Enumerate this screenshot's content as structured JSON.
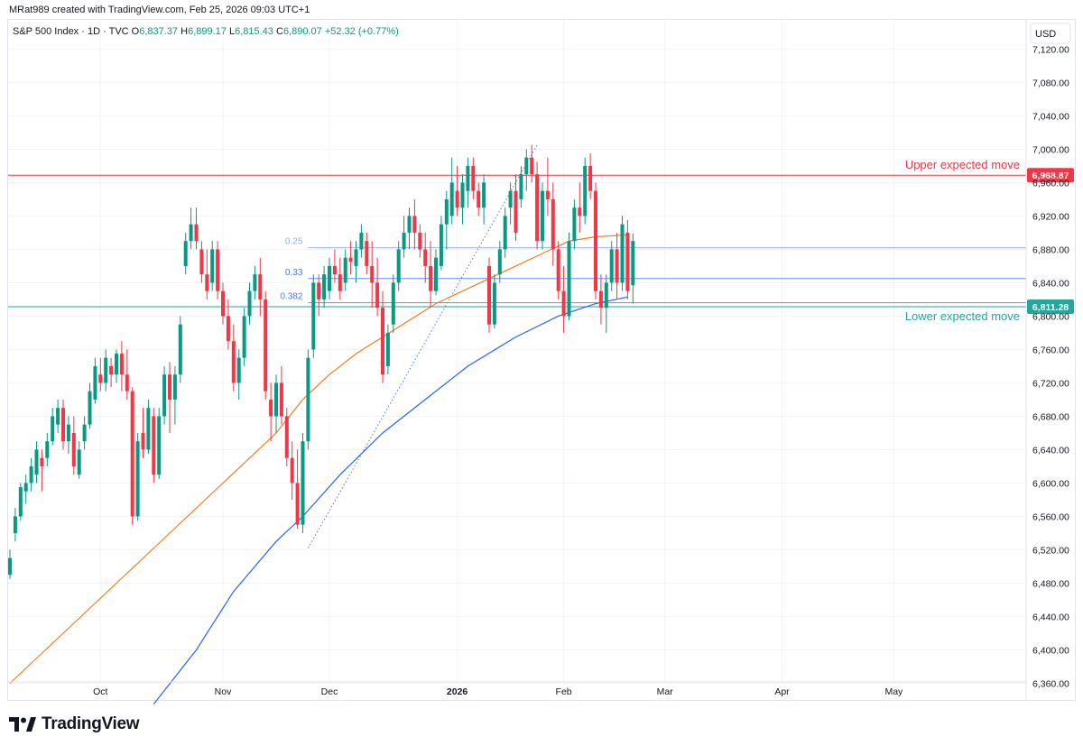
{
  "header": {
    "credit": "MRat989 created with TradingView.com, Feb 25, 2026 09:03 UTC+1"
  },
  "legend": {
    "symbol": "S&P 500 Index · 1D · TVC",
    "o_label": "O",
    "o_value": "6,837.37",
    "h_label": "H",
    "h_value": "6,899.17",
    "l_label": "L",
    "l_value": "6,815.43",
    "c_label": "C",
    "c_value": "6,890.07",
    "change": "+52.32 (+0.77%)"
  },
  "currency": "USD",
  "logo": {
    "text": "TradingView"
  },
  "colors": {
    "up": "#089981",
    "down": "#f23645",
    "ma_fast": "#f57c1f",
    "ma_slow": "#2962ff",
    "fib": "#4b7be5",
    "upper_line": "#f23645",
    "lower_line": "#26a69a"
  },
  "chart_data": {
    "type": "candlestick",
    "y_axis": {
      "range": [
        6340,
        7155
      ],
      "ticks": [
        6360,
        6400,
        6440,
        6480,
        6520,
        6560,
        6600,
        6640,
        6680,
        6720,
        6760,
        6800,
        6840,
        6880,
        6920,
        6960,
        7000,
        7040,
        7080,
        7120
      ],
      "tick_labels": [
        "6,360.00",
        "6,400.00",
        "6,440.00",
        "6,480.00",
        "6,520.00",
        "6,560.00",
        "6,600.00",
        "6,640.00",
        "6,680.00",
        "6,720.00",
        "6,760.00",
        "6,800.00",
        "6,840.00",
        "6,880.00",
        "6,920.00",
        "6,960.00",
        "7,000.00",
        "7,040.00",
        "7,080.00",
        "7,120.00"
      ]
    },
    "x_axis": {
      "labels": [
        {
          "text": "Oct",
          "bar": 17
        },
        {
          "text": "Nov",
          "bar": 40
        },
        {
          "text": "Dec",
          "bar": 60
        },
        {
          "text": "2026",
          "bar": 84
        },
        {
          "text": "Feb",
          "bar": 104
        },
        {
          "text": "Mar",
          "bar": 123
        },
        {
          "text": "Apr",
          "bar": 145
        },
        {
          "text": "May",
          "bar": 166
        }
      ],
      "total_bars": 190
    },
    "candles": [
      [
        6490,
        6520,
        6485,
        6510
      ],
      [
        6540,
        6570,
        6530,
        6560
      ],
      [
        6560,
        6600,
        6555,
        6595
      ],
      [
        6590,
        6610,
        6575,
        6600
      ],
      [
        6600,
        6630,
        6590,
        6620
      ],
      [
        6610,
        6650,
        6600,
        6640
      ],
      [
        6630,
        6640,
        6590,
        6620
      ],
      [
        6630,
        6660,
        6620,
        6650
      ],
      [
        6650,
        6690,
        6645,
        6680
      ],
      [
        6670,
        6700,
        6660,
        6690
      ],
      [
        6690,
        6700,
        6640,
        6650
      ],
      [
        6650,
        6680,
        6635,
        6670
      ],
      [
        6660,
        6680,
        6610,
        6620
      ],
      [
        6610,
        6650,
        6605,
        6640
      ],
      [
        6650,
        6680,
        6640,
        6670
      ],
      [
        6670,
        6720,
        6665,
        6710
      ],
      [
        6700,
        6750,
        6695,
        6740
      ],
      [
        6730,
        6750,
        6710,
        6720
      ],
      [
        6720,
        6760,
        6710,
        6750
      ],
      [
        6740,
        6750,
        6715,
        6730
      ],
      [
        6730,
        6760,
        6720,
        6755
      ],
      [
        6755,
        6770,
        6710,
        6730
      ],
      [
        6730,
        6760,
        6700,
        6710
      ],
      [
        6710,
        6715,
        6550,
        6560
      ],
      [
        6560,
        6660,
        6555,
        6650
      ],
      [
        6660,
        6690,
        6630,
        6640
      ],
      [
        6640,
        6700,
        6635,
        6690
      ],
      [
        6680,
        6690,
        6600,
        6610
      ],
      [
        6610,
        6690,
        6605,
        6680
      ],
      [
        6680,
        6740,
        6670,
        6730
      ],
      [
        6730,
        6745,
        6660,
        6700
      ],
      [
        6700,
        6740,
        6670,
        6730
      ],
      [
        6730,
        6800,
        6720,
        6790
      ],
      [
        6860,
        6900,
        6850,
        6890
      ],
      [
        6890,
        6930,
        6880,
        6910
      ],
      [
        6910,
        6930,
        6880,
        6890
      ],
      [
        6880,
        6890,
        6840,
        6850
      ],
      [
        6850,
        6880,
        6820,
        6830
      ],
      [
        6840,
        6890,
        6830,
        6880
      ],
      [
        6880,
        6890,
        6820,
        6830
      ],
      [
        6830,
        6840,
        6790,
        6800
      ],
      [
        6800,
        6820,
        6760,
        6770
      ],
      [
        6770,
        6790,
        6710,
        6720
      ],
      [
        6720,
        6760,
        6700,
        6750
      ],
      [
        6750,
        6810,
        6740,
        6800
      ],
      [
        6800,
        6840,
        6790,
        6830
      ],
      [
        6830,
        6860,
        6820,
        6850
      ],
      [
        6850,
        6870,
        6800,
        6820
      ],
      [
        6820,
        6830,
        6700,
        6710
      ],
      [
        6700,
        6720,
        6650,
        6680
      ],
      [
        6680,
        6730,
        6660,
        6720
      ],
      [
        6720,
        6740,
        6670,
        6680
      ],
      [
        6680,
        6690,
        6620,
        6630
      ],
      [
        6630,
        6650,
        6580,
        6600
      ],
      [
        6600,
        6640,
        6545,
        6550
      ],
      [
        6550,
        6660,
        6540,
        6650
      ],
      [
        6650,
        6760,
        6640,
        6750
      ],
      [
        6760,
        6850,
        6750,
        6840
      ],
      [
        6840,
        6850,
        6800,
        6820
      ],
      [
        6820,
        6860,
        6810,
        6850
      ],
      [
        6830,
        6870,
        6820,
        6860
      ],
      [
        6860,
        6880,
        6840,
        6850
      ],
      [
        6850,
        6870,
        6820,
        6830
      ],
      [
        6840,
        6880,
        6830,
        6870
      ],
      [
        6870,
        6890,
        6850,
        6865
      ],
      [
        6860,
        6890,
        6840,
        6880
      ],
      [
        6880,
        6910,
        6870,
        6900
      ],
      [
        6890,
        6900,
        6850,
        6860
      ],
      [
        6860,
        6890,
        6810,
        6840
      ],
      [
        6840,
        6870,
        6800,
        6810
      ],
      [
        6810,
        6830,
        6720,
        6730
      ],
      [
        6740,
        6790,
        6730,
        6780
      ],
      [
        6790,
        6850,
        6780,
        6840
      ],
      [
        6840,
        6890,
        6830,
        6880
      ],
      [
        6880,
        6920,
        6870,
        6900
      ],
      [
        6900,
        6930,
        6880,
        6920
      ],
      [
        6920,
        6940,
        6880,
        6900
      ],
      [
        6900,
        6910,
        6870,
        6880
      ],
      [
        6880,
        6900,
        6840,
        6860
      ],
      [
        6860,
        6890,
        6810,
        6830
      ],
      [
        6830,
        6880,
        6825,
        6870
      ],
      [
        6860,
        6920,
        6855,
        6910
      ],
      [
        6910,
        6950,
        6880,
        6940
      ],
      [
        6920,
        6990,
        6910,
        6960
      ],
      [
        6950,
        6980,
        6920,
        6930
      ],
      [
        6930,
        6970,
        6910,
        6960
      ],
      [
        6950,
        6990,
        6930,
        6980
      ],
      [
        6980,
        6990,
        6940,
        6950
      ],
      [
        6950,
        6960,
        6920,
        6930
      ],
      [
        6930,
        6970,
        6910,
        6960
      ],
      [
        6860,
        6870,
        6780,
        6790
      ],
      [
        6790,
        6850,
        6785,
        6840
      ],
      [
        6850,
        6890,
        6840,
        6880
      ],
      [
        6880,
        6930,
        6870,
        6920
      ],
      [
        6930,
        6960,
        6910,
        6950
      ],
      [
        6950,
        6970,
        6890,
        6900
      ],
      [
        6940,
        6980,
        6930,
        6970
      ],
      [
        6970,
        7000,
        6950,
        6990
      ],
      [
        6990,
        7005,
        6960,
        6970
      ],
      [
        6970,
        6985,
        6880,
        6890
      ],
      [
        6890,
        6960,
        6880,
        6950
      ],
      [
        6950,
        6990,
        6920,
        6940
      ],
      [
        6940,
        6960,
        6860,
        6880
      ],
      [
        6880,
        6890,
        6820,
        6830
      ],
      [
        6830,
        6860,
        6780,
        6800
      ],
      [
        6800,
        6900,
        6795,
        6890
      ],
      [
        6890,
        6940,
        6880,
        6930
      ],
      [
        6930,
        6960,
        6900,
        6920
      ],
      [
        6920,
        6990,
        6910,
        6980
      ],
      [
        6980,
        6995,
        6940,
        6950
      ],
      [
        6950,
        6960,
        6820,
        6830
      ],
      [
        6830,
        6850,
        6790,
        6810
      ],
      [
        6810,
        6850,
        6780,
        6840
      ],
      [
        6840,
        6890,
        6830,
        6880
      ],
      [
        6880,
        6900,
        6820,
        6840
      ],
      [
        6840,
        6920,
        6830,
        6910
      ],
      [
        6900,
        6915,
        6820,
        6830
      ],
      [
        6837,
        6899,
        6815,
        6890
      ]
    ],
    "ma_fast_values": [
      [
        0,
        6360
      ],
      [
        10,
        6420
      ],
      [
        20,
        6480
      ],
      [
        30,
        6540
      ],
      [
        40,
        6600
      ],
      [
        50,
        6660
      ],
      [
        55,
        6700
      ],
      [
        60,
        6730
      ],
      [
        65,
        6755
      ],
      [
        70,
        6775
      ],
      [
        75,
        6795
      ],
      [
        80,
        6815
      ],
      [
        85,
        6830
      ],
      [
        90,
        6845
      ],
      [
        95,
        6860
      ],
      [
        100,
        6875
      ],
      [
        105,
        6890
      ],
      [
        110,
        6895
      ],
      [
        115,
        6897
      ],
      [
        116,
        6897
      ]
    ],
    "ma_slow_values": [
      [
        27,
        6335
      ],
      [
        35,
        6400
      ],
      [
        42,
        6470
      ],
      [
        50,
        6530
      ],
      [
        55,
        6560
      ],
      [
        62,
        6610
      ],
      [
        70,
        6660
      ],
      [
        78,
        6700
      ],
      [
        86,
        6740
      ],
      [
        95,
        6775
      ],
      [
        103,
        6800
      ],
      [
        110,
        6815
      ],
      [
        116,
        6823
      ]
    ],
    "fib_labels": [
      "0.25",
      "0.33",
      "0.382"
    ],
    "fib_levels": [
      6882,
      6845,
      6816
    ],
    "upper_expected_move": {
      "label": "Upper expected move",
      "value": 6968.87,
      "price_label": "6,968.87"
    },
    "lower_expected_move": {
      "label": "Lower expected move",
      "value": 6811.28,
      "price_label": "6,811.28"
    },
    "trendline": {
      "from": [
        56,
        6522
      ],
      "to": [
        99,
        7005
      ]
    }
  }
}
